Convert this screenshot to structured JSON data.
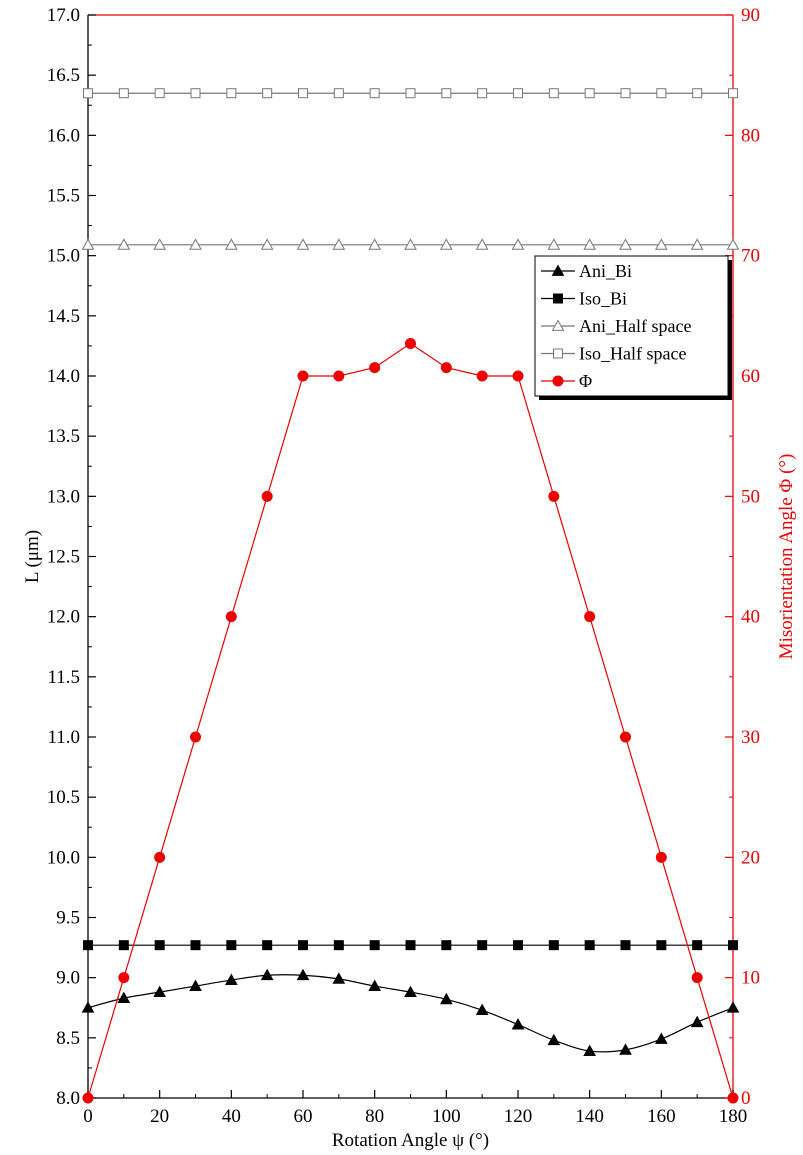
{
  "chart_data": {
    "type": "line",
    "title": "",
    "xlabel": "Rotation Angle ψ (°)",
    "ylabel": "L (μm)",
    "y2label": "Misorientation Angle Φ (°)",
    "xlim": [
      0,
      180
    ],
    "ylim": [
      8.0,
      17.0
    ],
    "y2lim": [
      0,
      90
    ],
    "xticks": [
      "0",
      "20",
      "40",
      "60",
      "80",
      "100",
      "120",
      "140",
      "160",
      "180"
    ],
    "yticks": [
      "8.0",
      "8.5",
      "9.0",
      "9.5",
      "10.0",
      "10.5",
      "11.0",
      "11.5",
      "12.0",
      "12.5",
      "13.0",
      "13.5",
      "14.0",
      "14.5",
      "15.0",
      "15.5",
      "16.0",
      "16.5",
      "17.0"
    ],
    "y2ticks": [
      "0",
      "10",
      "20",
      "30",
      "40",
      "50",
      "60",
      "70",
      "80",
      "90"
    ],
    "grid": false,
    "legend_position": "right",
    "x": [
      0,
      10,
      20,
      30,
      40,
      50,
      60,
      70,
      80,
      90,
      100,
      110,
      120,
      130,
      140,
      150,
      160,
      170,
      180
    ],
    "series": [
      {
        "name": "Ani_Bi",
        "axis": "left",
        "marker": "triangle-filled",
        "color": "#000000",
        "smooth": true,
        "values": [
          8.75,
          8.83,
          8.88,
          8.93,
          8.98,
          9.02,
          9.02,
          8.99,
          8.93,
          8.88,
          8.82,
          8.73,
          8.61,
          8.48,
          8.39,
          8.4,
          8.49,
          8.63,
          8.75
        ]
      },
      {
        "name": "Iso_Bi",
        "axis": "left",
        "marker": "square-filled",
        "color": "#000000",
        "smooth": false,
        "values": [
          9.27,
          9.27,
          9.27,
          9.27,
          9.27,
          9.27,
          9.27,
          9.27,
          9.27,
          9.27,
          9.27,
          9.27,
          9.27,
          9.27,
          9.27,
          9.27,
          9.27,
          9.27,
          9.27
        ]
      },
      {
        "name": "Ani_Half space",
        "axis": "left",
        "marker": "triangle-open",
        "color": "#777777",
        "smooth": false,
        "values": [
          15.09,
          15.09,
          15.09,
          15.09,
          15.09,
          15.09,
          15.09,
          15.09,
          15.09,
          15.09,
          15.09,
          15.09,
          15.09,
          15.09,
          15.09,
          15.09,
          15.09,
          15.09,
          15.09
        ]
      },
      {
        "name": "Iso_Half space",
        "axis": "left",
        "marker": "square-open",
        "color": "#777777",
        "smooth": false,
        "values": [
          16.35,
          16.35,
          16.35,
          16.35,
          16.35,
          16.35,
          16.35,
          16.35,
          16.35,
          16.35,
          16.35,
          16.35,
          16.35,
          16.35,
          16.35,
          16.35,
          16.35,
          16.35,
          16.35
        ]
      },
      {
        "name": "Φ",
        "axis": "right",
        "marker": "circle-filled",
        "color": "#ee0000",
        "smooth": false,
        "values": [
          0,
          10,
          20,
          30,
          40,
          50,
          60,
          60,
          60.7,
          62.7,
          60.7,
          60,
          60,
          50,
          40,
          30,
          20,
          10,
          0
        ]
      }
    ]
  }
}
